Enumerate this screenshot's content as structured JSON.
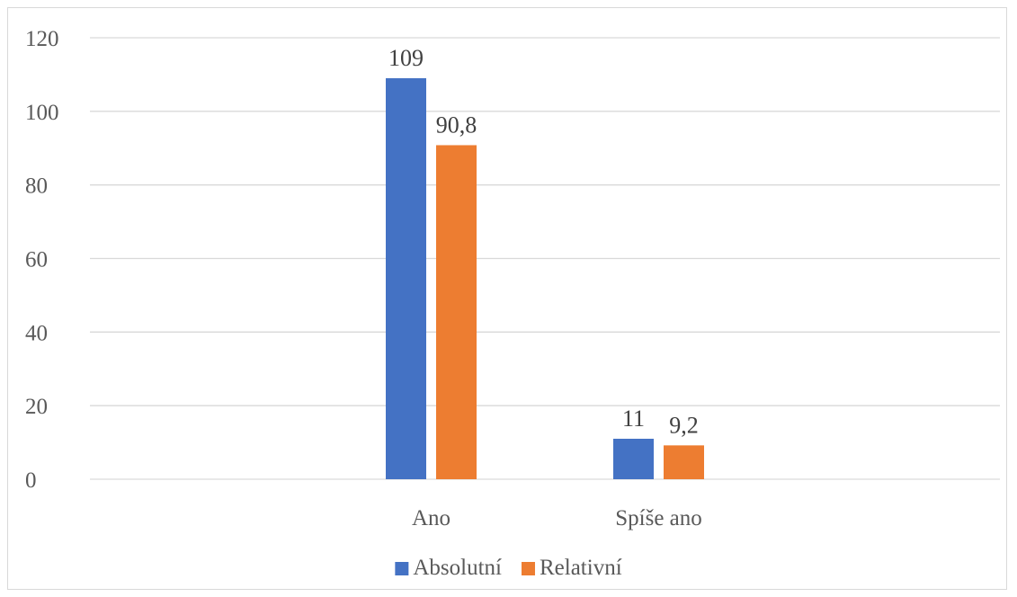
{
  "chart_data": {
    "type": "bar",
    "categories": [
      "Ano",
      "Spíše ano"
    ],
    "series": [
      {
        "name": "Absolutní",
        "values": [
          109,
          11
        ],
        "value_labels": [
          "109",
          "11"
        ],
        "color": "#4472C4"
      },
      {
        "name": "Relativní",
        "values": [
          90.8,
          9.2
        ],
        "value_labels": [
          "90,8",
          "9,2"
        ],
        "color": "#ED7D31"
      }
    ],
    "ylim": [
      0,
      120
    ],
    "yticks": [
      0,
      20,
      40,
      60,
      80,
      100,
      120
    ],
    "grid": true,
    "legend": "bottom",
    "title": "",
    "xlabel": "",
    "ylabel": ""
  }
}
